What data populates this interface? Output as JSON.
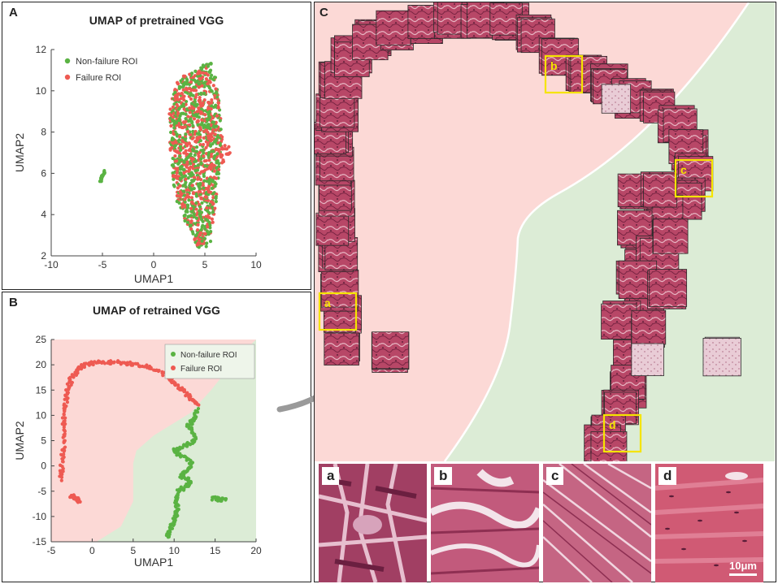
{
  "figure": {
    "panels": {
      "a": {
        "label": "A",
        "title": "UMAP of pretrained VGG"
      },
      "b": {
        "label": "B",
        "title": "UMAP of retrained VGG"
      },
      "c": {
        "label": "C"
      }
    },
    "crops": [
      {
        "letter": "a"
      },
      {
        "letter": "b"
      },
      {
        "letter": "c"
      },
      {
        "letter": "d"
      }
    ],
    "scale_bar": "10μm",
    "colors": {
      "nonfailure": "#5ab343",
      "failure": "#ee5a52",
      "failure_region": "#fcd9d6",
      "nonfailure_region": "#dcecd6",
      "roi_box": "#f5e400",
      "tissue": "#b84767"
    }
  },
  "chart_data": [
    {
      "type": "scatter",
      "title": "UMAP of pretrained VGG",
      "xlabel": "UMAP1",
      "ylabel": "UMAP2",
      "xlim": [
        -10,
        10
      ],
      "ylim": [
        2,
        12
      ],
      "xticks": [
        -10,
        -5,
        0,
        5,
        10
      ],
      "yticks": [
        2,
        4,
        6,
        8,
        10,
        12
      ],
      "legend": {
        "position": "top-left"
      },
      "series": [
        {
          "name": "Non-failure ROI",
          "color": "#5ab343",
          "clusters": [
            {
              "x": [
                -5.2,
                -4.8
              ],
              "y": [
                5.6,
                6.1
              ]
            },
            {
              "outline": [
                [
                  5.3,
                  11.5
                ],
                [
                  5.8,
                  11.3
                ],
                [
                  6.3,
                  10.0
                ],
                [
                  6.6,
                  8.0
                ],
                [
                  6.4,
                  6.0
                ],
                [
                  6.0,
                  4.0
                ],
                [
                  5.5,
                  2.5
                ],
                [
                  4.3,
                  2.3
                ],
                [
                  3.6,
                  3.0
                ],
                [
                  2.7,
                  4.0
                ],
                [
                  2.0,
                  5.0
                ],
                [
                  1.7,
                  6.5
                ],
                [
                  1.6,
                  8.5
                ],
                [
                  2.0,
                  10.2
                ],
                [
                  3.2,
                  10.8
                ],
                [
                  4.3,
                  11.0
                ]
              ]
            }
          ]
        },
        {
          "name": "Failure ROI",
          "color": "#ee5a52",
          "clusters": [
            {
              "outline": [
                [
                  5.1,
                  11.3
                ],
                [
                  5.8,
                  11.0
                ],
                [
                  6.3,
                  9.8
                ],
                [
                  6.8,
                  7.4
                ],
                [
                  7.6,
                  7.3
                ],
                [
                  7.4,
                  6.8
                ],
                [
                  6.3,
                  6.0
                ],
                [
                  6.0,
                  4.0
                ],
                [
                  5.4,
                  2.6
                ],
                [
                  4.4,
                  2.4
                ],
                [
                  3.6,
                  3.1
                ],
                [
                  2.7,
                  4.2
                ],
                [
                  2.0,
                  5.3
                ],
                [
                  1.6,
                  7.0
                ],
                [
                  1.5,
                  9.0
                ],
                [
                  2.1,
                  10.4
                ],
                [
                  3.4,
                  10.9
                ],
                [
                  4.3,
                  11.0
                ]
              ]
            }
          ]
        }
      ]
    },
    {
      "type": "scatter",
      "title": "UMAP of retrained VGG",
      "xlabel": "UMAP1",
      "ylabel": "UMAP2",
      "xlim": [
        -5,
        20
      ],
      "ylim": [
        -15,
        25
      ],
      "xticks": [
        -5,
        0,
        5,
        10,
        15,
        20
      ],
      "yticks": [
        -15,
        -10,
        -5,
        0,
        5,
        10,
        15,
        20,
        25
      ],
      "legend": {
        "position": "top-right"
      },
      "series": [
        {
          "name": "Non-failure ROI",
          "color": "#5ab343",
          "curves": [
            [
              [
                12.8,
                11.0
              ],
              [
                12.4,
                9.0
              ],
              [
                11.6,
                8.0
              ],
              [
                12.2,
                7.0
              ],
              [
                12.6,
                5.0
              ],
              [
                11.3,
                4.0
              ],
              [
                10.0,
                3.0
              ],
              [
                10.8,
                2.0
              ],
              [
                12.2,
                0.5
              ],
              [
                11.6,
                -1.0
              ],
              [
                10.8,
                -2.0
              ],
              [
                12.0,
                -3.0
              ],
              [
                11.5,
                -4.0
              ],
              [
                10.5,
                -5.0
              ],
              [
                10.2,
                -7.0
              ],
              [
                10.4,
                -9.0
              ],
              [
                10.0,
                -11.0
              ],
              [
                9.4,
                -13.0
              ],
              [
                9.2,
                -14.0
              ]
            ],
            [
              [
                14.8,
                -6.4
              ],
              [
                15.6,
                -6.6
              ],
              [
                16.2,
                -6.8
              ]
            ]
          ]
        },
        {
          "name": "Failure ROI",
          "color": "#ee5a52",
          "curves": [
            [
              [
                13.0,
                12.0
              ],
              [
                12.0,
                13.5
              ],
              [
                11.0,
                15.0
              ],
              [
                10.0,
                16.5
              ],
              [
                9.0,
                18.0
              ],
              [
                7.0,
                19.5
              ],
              [
                5.0,
                20.2
              ],
              [
                3.0,
                20.5
              ],
              [
                1.0,
                20.5
              ],
              [
                -0.5,
                20.2
              ],
              [
                -1.5,
                19.5
              ],
              [
                -2.5,
                17.5
              ],
              [
                -3.0,
                15.0
              ],
              [
                -3.3,
                12.0
              ],
              [
                -3.5,
                8.0
              ],
              [
                -3.5,
                4.0
              ],
              [
                -3.7,
                0.0
              ],
              [
                -3.8,
                -3.0
              ]
            ],
            [
              [
                -2.6,
                -5.8
              ],
              [
                -2.0,
                -6.4
              ],
              [
                -1.6,
                -7.0
              ]
            ]
          ]
        }
      ]
    }
  ]
}
